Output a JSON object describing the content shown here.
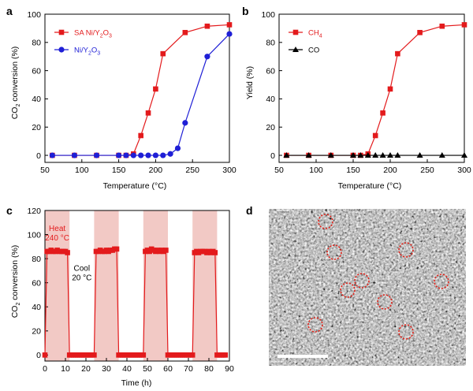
{
  "colors": {
    "red": "#e31a1c",
    "blue": "#1f1fd6",
    "black": "#000000",
    "band": "#f2c9c5",
    "circle": "#e0281f",
    "tem_bg": "#8c8c8c",
    "scale_bar": "#ffffff"
  },
  "chart_data": [
    {
      "panel_label": "a",
      "type": "line",
      "xlabel": "Temperature (°C)",
      "ylabel": "CO2 conversion (%)",
      "xlim": [
        50,
        300
      ],
      "ylim": [
        -5,
        100
      ],
      "x_ticks": [
        "50",
        "100",
        "150",
        "200",
        "250",
        "300"
      ],
      "y_ticks": [
        "0",
        "20",
        "40",
        "60",
        "80",
        "100"
      ],
      "legend_position": "top-left",
      "series": [
        {
          "name": "SA Ni/Y2O3",
          "color": "#e31a1c",
          "marker": "square",
          "x": [
            60,
            90,
            120,
            150,
            160,
            170,
            180,
            190,
            200,
            210,
            240,
            270,
            300
          ],
          "y": [
            0,
            0,
            0,
            0,
            0,
            1,
            14,
            30,
            47,
            72,
            87,
            91.5,
            92.5
          ]
        },
        {
          "name": "Ni/Y2O3",
          "color": "#1f1fd6",
          "marker": "circle",
          "x": [
            60,
            90,
            120,
            150,
            160,
            170,
            180,
            190,
            200,
            210,
            220,
            230,
            240,
            270,
            300
          ],
          "y": [
            0,
            0,
            0,
            0,
            0,
            0,
            0,
            0,
            0,
            0,
            1,
            5,
            23,
            70,
            86
          ]
        }
      ]
    },
    {
      "panel_label": "b",
      "type": "line",
      "xlabel": "Temperature (°C)",
      "ylabel": "Yield (%)",
      "xlim": [
        50,
        300
      ],
      "ylim": [
        -5,
        100
      ],
      "x_ticks": [
        "50",
        "100",
        "150",
        "200",
        "250",
        "300"
      ],
      "y_ticks": [
        "0",
        "20",
        "40",
        "60",
        "80",
        "100"
      ],
      "legend_position": "top-left",
      "series": [
        {
          "name": "CH4",
          "color": "#e31a1c",
          "marker": "square",
          "x": [
            60,
            90,
            120,
            150,
            160,
            170,
            180,
            190,
            200,
            210,
            240,
            270,
            300
          ],
          "y": [
            0,
            0,
            0,
            0,
            0,
            1,
            14,
            30,
            47,
            72,
            87,
            91.5,
            92.5
          ]
        },
        {
          "name": "CO",
          "color": "#000000",
          "marker": "triangle",
          "x": [
            60,
            90,
            120,
            150,
            160,
            170,
            180,
            190,
            200,
            210,
            240,
            270,
            300
          ],
          "y": [
            0,
            0,
            0,
            0,
            0,
            0,
            0,
            0,
            0,
            0,
            0,
            0,
            0
          ]
        }
      ]
    },
    {
      "panel_label": "c",
      "type": "line",
      "xlabel": "Time (h)",
      "ylabel": "CO2 conversion (%)",
      "xlim": [
        0,
        90
      ],
      "ylim": [
        -5,
        120
      ],
      "x_ticks": [
        "0",
        "10",
        "20",
        "30",
        "40",
        "50",
        "60",
        "70",
        "80",
        "90"
      ],
      "y_ticks": [
        "0",
        "20",
        "40",
        "60",
        "80",
        "100",
        "120"
      ],
      "annotations": [
        {
          "text_lines": [
            "Heat",
            "240 °C"
          ],
          "color": "#e31a1c",
          "anchor_x": 6,
          "anchor_y": 103
        },
        {
          "text_lines": [
            "Cool",
            "20 °C"
          ],
          "color": "#000000",
          "anchor_x": 18,
          "anchor_y": 70
        }
      ],
      "heat_bands": [
        [
          0,
          12
        ],
        [
          24,
          36
        ],
        [
          48,
          60
        ],
        [
          72,
          84
        ]
      ],
      "series": [
        {
          "name": "",
          "color": "#e31a1c",
          "marker": "square",
          "x": [
            0,
            1,
            2,
            3,
            4,
            5,
            6,
            7,
            8,
            9,
            10,
            11,
            12,
            13,
            14,
            15,
            16,
            17,
            18,
            19,
            20,
            21,
            22,
            23,
            24,
            25,
            26,
            27,
            28,
            29,
            30,
            31,
            32,
            33,
            34,
            35,
            36,
            37,
            38,
            39,
            40,
            41,
            42,
            43,
            44,
            45,
            46,
            47,
            48,
            49,
            50,
            51,
            52,
            53,
            54,
            55,
            56,
            57,
            58,
            59,
            60,
            61,
            62,
            63,
            64,
            65,
            66,
            67,
            68,
            69,
            70,
            71,
            72,
            73,
            74,
            75,
            76,
            77,
            78,
            79,
            80,
            81,
            82,
            83,
            84,
            85,
            86,
            87,
            88
          ],
          "y": [
            0,
            86,
            86,
            87,
            86,
            86,
            87,
            86,
            86,
            86,
            86,
            85,
            0,
            0,
            0,
            0,
            0,
            0,
            0,
            0,
            0,
            0,
            0,
            0,
            0,
            86,
            86,
            87,
            86,
            86,
            87,
            86,
            87,
            87,
            88,
            88,
            0,
            0,
            0,
            0,
            0,
            0,
            0,
            0,
            0,
            0,
            0,
            0,
            0,
            86,
            87,
            86,
            88,
            87,
            86,
            87,
            86,
            87,
            86,
            87,
            0,
            0,
            0,
            0,
            0,
            0,
            0,
            0,
            0,
            0,
            0,
            0,
            0,
            85,
            86,
            85,
            86,
            86,
            86,
            85,
            86,
            85,
            86,
            85,
            0,
            0,
            0,
            0,
            0
          ]
        }
      ]
    }
  ],
  "panel_d": {
    "panel_label": "d",
    "circle_marker_count": 12
  }
}
